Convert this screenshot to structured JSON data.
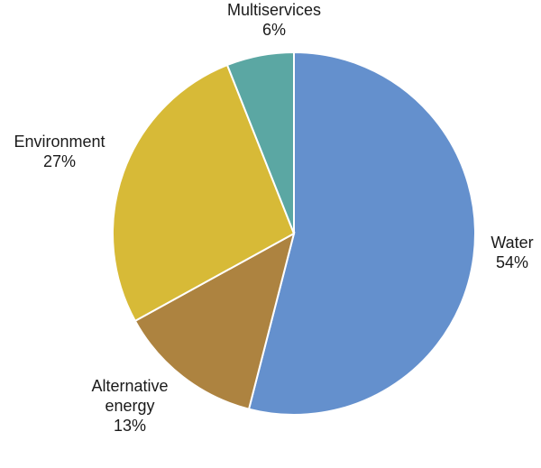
{
  "chart_data": {
    "type": "pie",
    "title": "",
    "start_angle_deg": 0,
    "direction": "clockwise",
    "slices": [
      {
        "name": "Water",
        "label_lines": [
          "Water"
        ],
        "percent_label": "54%",
        "value": 54,
        "color": "#6490CD"
      },
      {
        "name": "Alternative energy",
        "label_lines": [
          "Alternative",
          "energy"
        ],
        "percent_label": "13%",
        "value": 13,
        "color": "#AD8340"
      },
      {
        "name": "Environment",
        "label_lines": [
          "Environment"
        ],
        "percent_label": "27%",
        "value": 27,
        "color": "#D7BA37"
      },
      {
        "name": "Multiservices",
        "label_lines": [
          "Multiservices"
        ],
        "percent_label": "6%",
        "value": 6,
        "color": "#5BA7A3"
      }
    ]
  }
}
